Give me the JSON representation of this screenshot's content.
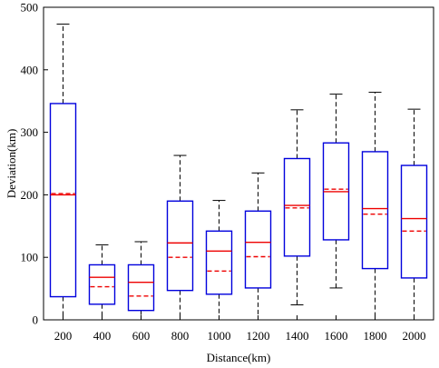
{
  "chart_data": {
    "type": "boxplot",
    "xlabel": "Distance(km)",
    "ylabel": "Deviation(km)",
    "ylim": [
      0,
      500
    ],
    "yticks": [
      0,
      100,
      200,
      300,
      400,
      500
    ],
    "categories": [
      "200",
      "400",
      "600",
      "800",
      "1000",
      "1200",
      "1400",
      "1600",
      "1800",
      "2000"
    ],
    "boxes": [
      {
        "min": 0,
        "q1": 37,
        "median": 200,
        "mean": 202,
        "q3": 346,
        "max": 473
      },
      {
        "min": 0,
        "q1": 25,
        "median": 68,
        "mean": 53,
        "q3": 88,
        "max": 120
      },
      {
        "min": 0,
        "q1": 15,
        "median": 60,
        "mean": 38,
        "q3": 88,
        "max": 125
      },
      {
        "min": 0,
        "q1": 47,
        "median": 123,
        "mean": 100,
        "q3": 190,
        "max": 263
      },
      {
        "min": 0,
        "q1": 41,
        "median": 110,
        "mean": 78,
        "q3": 142,
        "max": 191
      },
      {
        "min": 0,
        "q1": 51,
        "median": 124,
        "mean": 101,
        "q3": 174,
        "max": 235
      },
      {
        "min": 24,
        "q1": 102,
        "median": 183,
        "mean": 179,
        "q3": 258,
        "max": 336
      },
      {
        "min": 51,
        "q1": 128,
        "median": 205,
        "mean": 209,
        "q3": 283,
        "max": 361
      },
      {
        "min": 0,
        "q1": 82,
        "median": 178,
        "mean": 169,
        "q3": 269,
        "max": 364
      },
      {
        "min": 0,
        "q1": 67,
        "median": 162,
        "mean": 142,
        "q3": 247,
        "max": 337
      }
    ],
    "colors": {
      "box": "#0000dd",
      "median": "#ee0000",
      "mean": "#ee0000",
      "whisker": "#000000",
      "axis": "#000000"
    },
    "grid": false
  }
}
